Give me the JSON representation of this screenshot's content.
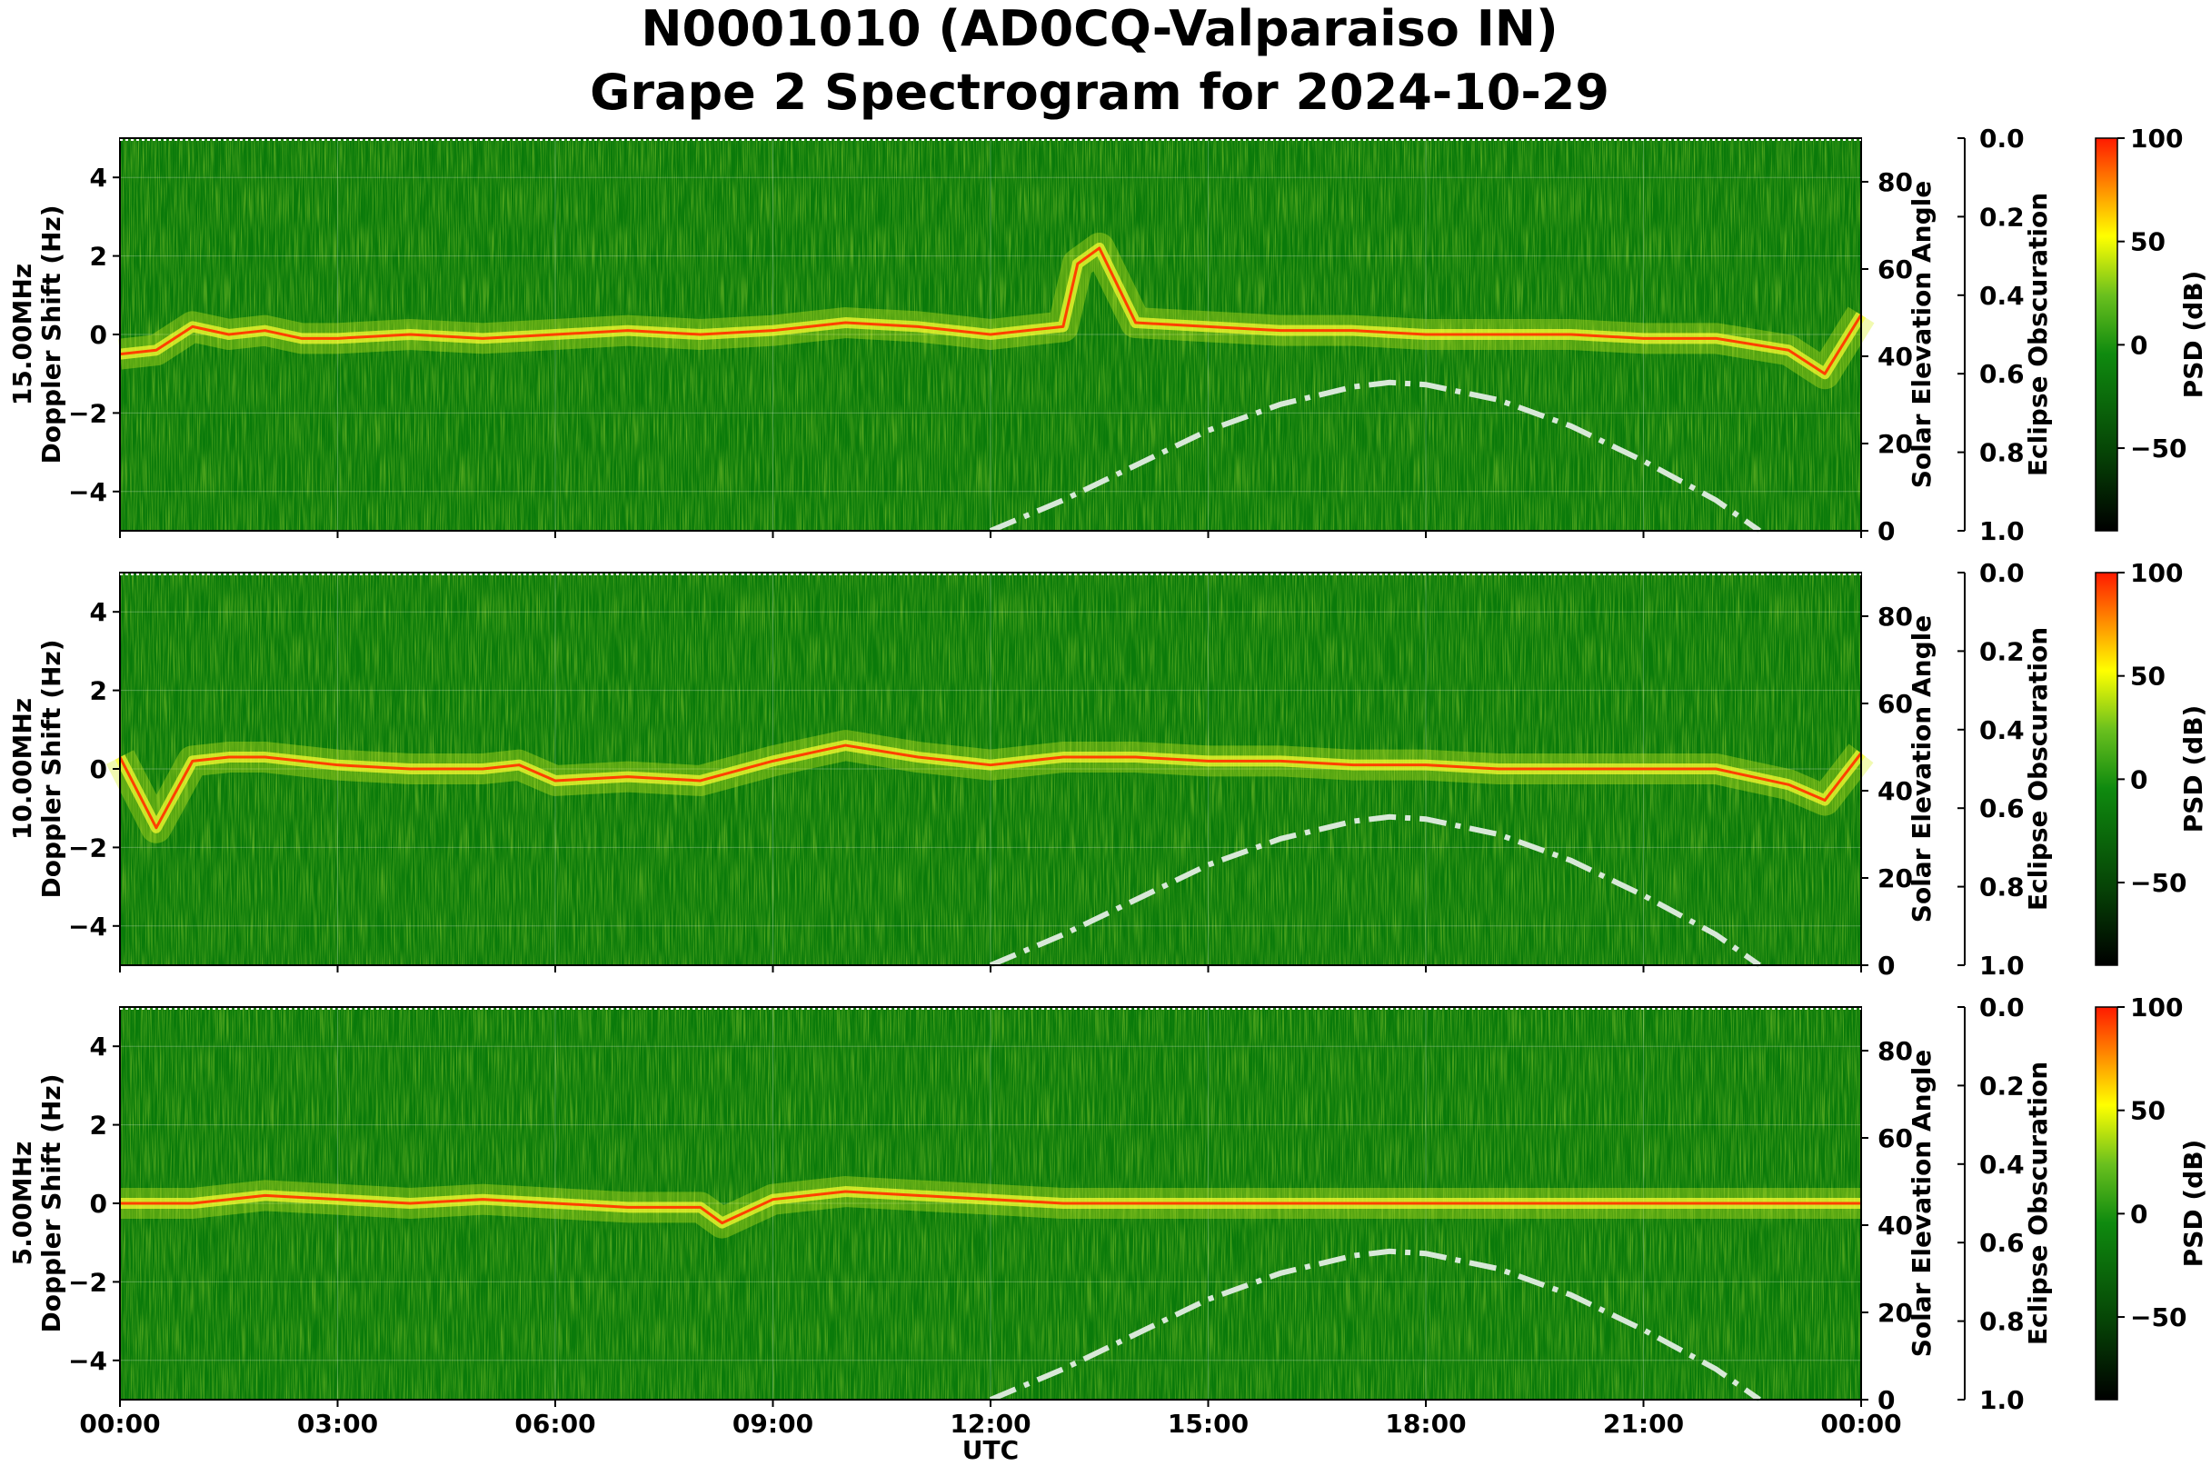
{
  "title_line1": "N0001010 (AD0CQ-Valparaiso IN)",
  "title_line2": "Grape 2 Spectrogram for 2024-10-29",
  "colors": {
    "background_green": "#0a7a0a",
    "psd_low": "#000000",
    "psd_mid": "#0f8a0f",
    "psd_yellow": "#ffff00",
    "psd_high": "#ff0000",
    "solar_curve": "#d8e8d8"
  },
  "chart_data": {
    "type": "heatmap",
    "xlabel": "UTC",
    "x_ticks": [
      "00:00",
      "03:00",
      "06:00",
      "09:00",
      "12:00",
      "15:00",
      "18:00",
      "21:00",
      "00:00"
    ],
    "x_range_hours": [
      0,
      24
    ],
    "ylabel_left_suffix": "Doppler Shift (Hz)",
    "ylim_doppler": [
      -5,
      5
    ],
    "y_ticks_doppler": [
      "4",
      "2",
      "0",
      "−2",
      "−4"
    ],
    "ylabel_right1": "Solar Elevation Angle",
    "ylim_elevation": [
      0,
      90
    ],
    "y_ticks_elevation": [
      "80",
      "60",
      "40",
      "20",
      "0"
    ],
    "ylabel_right2": "Eclipse Obscuration",
    "ylim_obscuration": [
      0.0,
      1.0
    ],
    "y_ticks_obscuration": [
      "0.0",
      "0.2",
      "0.4",
      "0.6",
      "0.8",
      "1.0"
    ],
    "colorbar_label": "PSD (dB)",
    "colorbar_range": [
      -90,
      100
    ],
    "colorbar_ticks": [
      "100",
      "50",
      "0",
      "−50"
    ],
    "grid": true,
    "panels": [
      {
        "frequency": "15.00MHz",
        "doppler_trace": [
          [
            0,
            -0.5
          ],
          [
            0.5,
            -0.4
          ],
          [
            1,
            0.2
          ],
          [
            1.5,
            0.0
          ],
          [
            2,
            0.1
          ],
          [
            2.5,
            -0.1
          ],
          [
            3,
            -0.1
          ],
          [
            4,
            0.0
          ],
          [
            5,
            -0.1
          ],
          [
            6,
            0.0
          ],
          [
            7,
            0.1
          ],
          [
            8,
            0.0
          ],
          [
            9,
            0.1
          ],
          [
            10,
            0.3
          ],
          [
            11,
            0.2
          ],
          [
            12,
            0.0
          ],
          [
            13,
            0.2
          ],
          [
            13.2,
            1.8
          ],
          [
            13.5,
            2.2
          ],
          [
            14,
            0.3
          ],
          [
            15,
            0.2
          ],
          [
            16,
            0.1
          ],
          [
            17,
            0.1
          ],
          [
            18,
            0.0
          ],
          [
            19,
            0.0
          ],
          [
            20,
            0.0
          ],
          [
            21,
            -0.1
          ],
          [
            22,
            -0.1
          ],
          [
            23,
            -0.4
          ],
          [
            23.5,
            -1.0
          ],
          [
            24,
            0.5
          ]
        ]
      },
      {
        "frequency": "10.00MHz",
        "doppler_trace": [
          [
            0,
            0.3
          ],
          [
            0.5,
            -1.5
          ],
          [
            1,
            0.2
          ],
          [
            1.5,
            0.3
          ],
          [
            2,
            0.3
          ],
          [
            3,
            0.1
          ],
          [
            4,
            0.0
          ],
          [
            5,
            0.0
          ],
          [
            5.5,
            0.1
          ],
          [
            6,
            -0.3
          ],
          [
            7,
            -0.2
          ],
          [
            8,
            -0.3
          ],
          [
            9,
            0.2
          ],
          [
            10,
            0.6
          ],
          [
            11,
            0.3
          ],
          [
            12,
            0.1
          ],
          [
            13,
            0.3
          ],
          [
            14,
            0.3
          ],
          [
            15,
            0.2
          ],
          [
            16,
            0.2
          ],
          [
            17,
            0.1
          ],
          [
            18,
            0.1
          ],
          [
            19,
            0.0
          ],
          [
            20,
            0.0
          ],
          [
            21,
            0.0
          ],
          [
            22,
            0.0
          ],
          [
            23,
            -0.4
          ],
          [
            23.5,
            -0.8
          ],
          [
            24,
            0.4
          ]
        ]
      },
      {
        "frequency": "5.00MHz",
        "doppler_trace": [
          [
            0,
            0.0
          ],
          [
            1,
            0.0
          ],
          [
            2,
            0.2
          ],
          [
            3,
            0.1
          ],
          [
            4,
            0.0
          ],
          [
            5,
            0.1
          ],
          [
            6,
            0.0
          ],
          [
            7,
            -0.1
          ],
          [
            8,
            -0.1
          ],
          [
            8.3,
            -0.5
          ],
          [
            9,
            0.1
          ],
          [
            10,
            0.3
          ],
          [
            11,
            0.2
          ],
          [
            12,
            0.1
          ],
          [
            13,
            0.0
          ],
          [
            14,
            0.0
          ],
          [
            15,
            0.0
          ],
          [
            16,
            0.0
          ],
          [
            17,
            0.0
          ],
          [
            18,
            0.0
          ],
          [
            19,
            0.0
          ],
          [
            20,
            0.0
          ],
          [
            21,
            0.0
          ],
          [
            22,
            0.0
          ],
          [
            23,
            0.0
          ],
          [
            24,
            0.0
          ]
        ]
      }
    ],
    "solar_elevation": [
      [
        12,
        0
      ],
      [
        13,
        7
      ],
      [
        14,
        15
      ],
      [
        15,
        23
      ],
      [
        16,
        29
      ],
      [
        17,
        33
      ],
      [
        17.5,
        34
      ],
      [
        18,
        33.5
      ],
      [
        19,
        30
      ],
      [
        20,
        24
      ],
      [
        21,
        16
      ],
      [
        22,
        7
      ],
      [
        22.6,
        0
      ]
    ]
  }
}
